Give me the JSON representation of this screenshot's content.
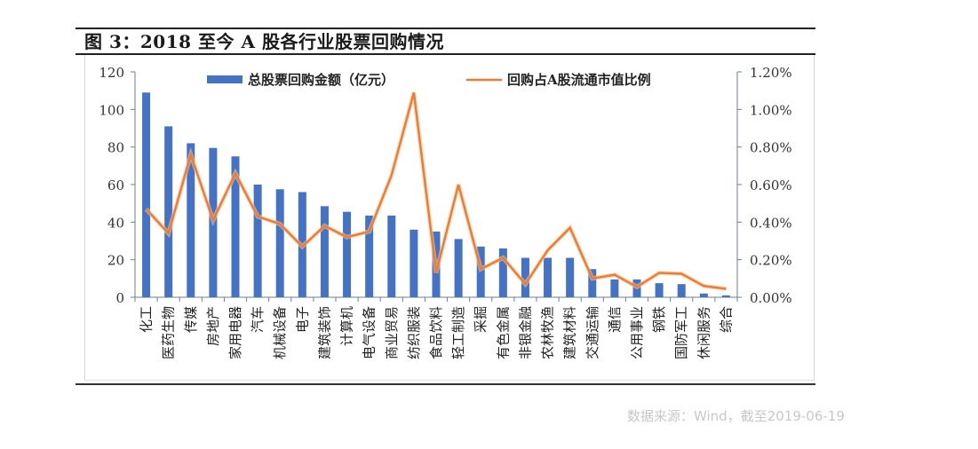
{
  "title": "图 3：2018 至今 A 股各行业股票回购情况",
  "source_note": "数据来源：Wind，截至2019-06-19",
  "colors": {
    "bar": "#4472C4",
    "line": "#ED7D31",
    "axis": "#6b7f99",
    "text": "#333333"
  },
  "legend": {
    "bar_label": "总股票回购金额（亿元）",
    "line_label": "回购占A股流通市值比例"
  },
  "chart_data": {
    "type": "bar+line",
    "title": "图 3：2018 至今 A 股各行业股票回购情况",
    "xlabel": "",
    "ylabel": "总股票回购金额（亿元）",
    "y2label": "回购占A股流通市值比例",
    "ylim": [
      0,
      120
    ],
    "y2lim": [
      0,
      1.2
    ],
    "yticks": [
      "0",
      "20",
      "40",
      "60",
      "80",
      "100",
      "120"
    ],
    "y2ticks": [
      "0.00%",
      "0.20%",
      "0.40%",
      "0.60%",
      "0.80%",
      "1.00%",
      "1.20%"
    ],
    "legend_position": "top",
    "grid": false,
    "categories": [
      "化工",
      "医药生物",
      "传媒",
      "房地产",
      "家用电器",
      "汽车",
      "机械设备",
      "电子",
      "建筑装饰",
      "计算机",
      "电气设备",
      "商业贸易",
      "纺织服装",
      "食品饮料",
      "轻工制造",
      "采掘",
      "有色金属",
      "非银金融",
      "农林牧渔",
      "建筑材料",
      "交通运输",
      "通信",
      "公用事业",
      "钢铁",
      "国防军工",
      "休闲服务",
      "综合"
    ],
    "series": [
      {
        "name": "总股票回购金额（亿元）",
        "type": "bar",
        "axis": "left",
        "values": [
          109,
          91,
          82,
          79.5,
          75,
          60,
          57.5,
          56,
          48.5,
          45.5,
          43.5,
          43.5,
          36,
          35,
          31,
          27,
          26,
          21,
          21,
          21,
          15,
          9.5,
          9.5,
          7.5,
          7,
          2,
          1
        ]
      },
      {
        "name": "回购占A股流通市值比例",
        "type": "line",
        "axis": "right",
        "unit": "%",
        "values": [
          0.47,
          0.34,
          0.76,
          0.41,
          0.66,
          0.43,
          0.39,
          0.27,
          0.38,
          0.32,
          0.35,
          0.65,
          1.09,
          0.13,
          0.6,
          0.15,
          0.21,
          0.07,
          0.25,
          0.37,
          0.1,
          0.12,
          0.055,
          0.13,
          0.125,
          0.06,
          0.045
        ]
      }
    ]
  }
}
